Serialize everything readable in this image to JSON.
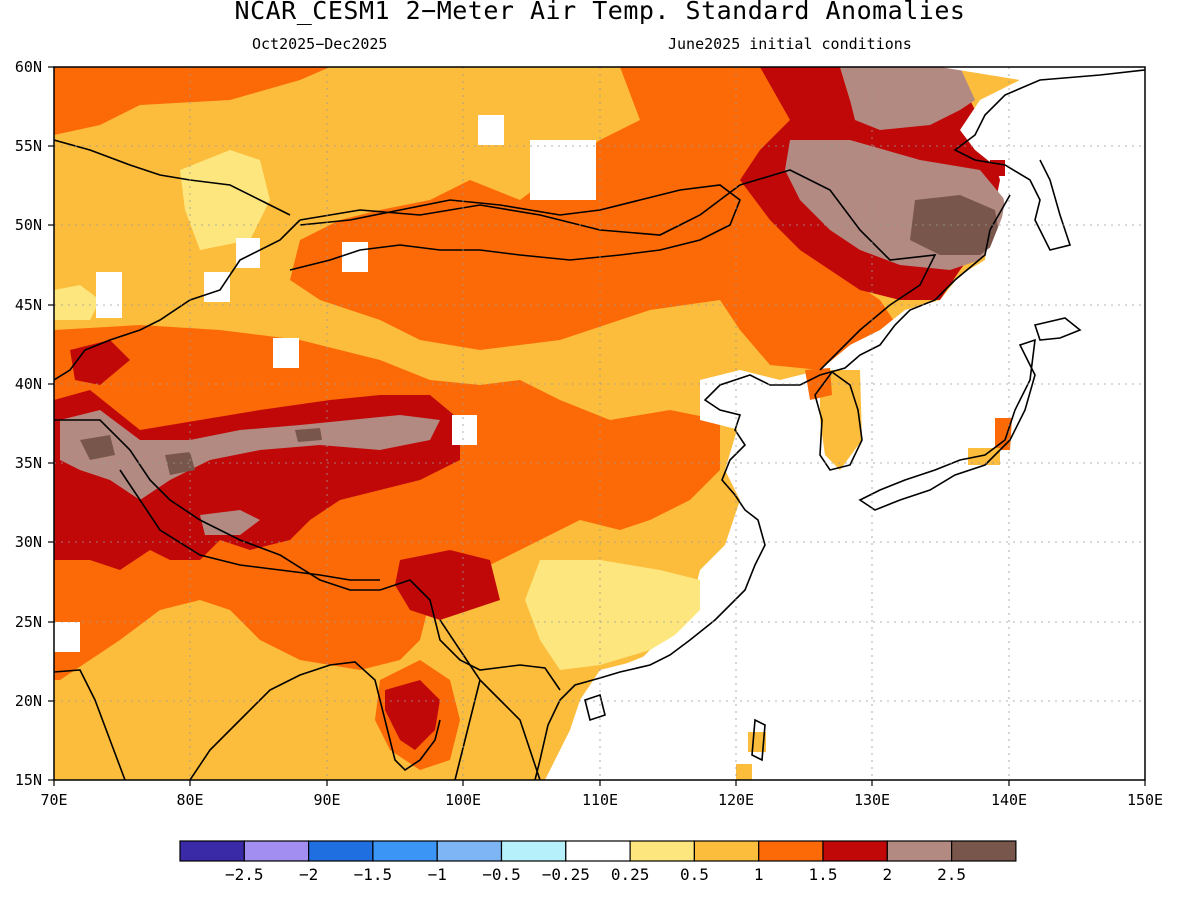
{
  "title": "NCAR_CESM1 2−Meter Air Temp. Standard Anomalies",
  "subtitle_left": "Oct2025−Dec2025",
  "subtitle_right": "June2025 initial conditions",
  "map": {
    "lon_range": [
      70,
      150
    ],
    "lat_range": [
      15,
      60
    ],
    "lat_ticks": [
      "15N",
      "20N",
      "25N",
      "30N",
      "35N",
      "40N",
      "45N",
      "50N",
      "55N",
      "60N"
    ],
    "lon_ticks": [
      "70E",
      "80E",
      "90E",
      "100E",
      "110E",
      "120E",
      "130E",
      "140E",
      "150E"
    ],
    "gridlines": "dotted"
  },
  "colorbar": {
    "colors": [
      "#3a2aa8",
      "#a28df0",
      "#1f6fe0",
      "#3b95f5",
      "#7db5f5",
      "#b6f0fb",
      "#ffffff",
      "#fde67e",
      "#fcbc3c",
      "#fc6a08",
      "#c10808",
      "#b28a82",
      "#78564b"
    ],
    "labels": [
      "−2.5",
      "−2",
      "−1.5",
      "−1",
      "−0.5",
      "−0.25",
      "0.25",
      "0.5",
      "1",
      "1.5",
      "2",
      "2.5"
    ]
  }
}
